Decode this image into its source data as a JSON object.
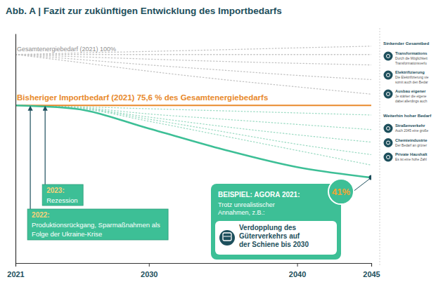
{
  "chart_data": {
    "type": "line",
    "title": "Abb. A | Fazit zur zukünftigen Entwicklung des Importbedarfs",
    "x": [
      2021,
      2025,
      2030,
      2035,
      2040,
      2045
    ],
    "xlim": [
      2021,
      2045
    ],
    "xticks": [
      2021,
      2030,
      2040,
      2045
    ],
    "ylim": [
      0,
      110
    ],
    "yticks": [],
    "tick_labels": "x",
    "grid": false,
    "series": [
      {
        "name": "Gesamtenergiebedarf (2021) 100%",
        "color": "#c4c4c4",
        "line_style": "dotted",
        "values": [
          100,
          100,
          100,
          100,
          100,
          100
        ]
      },
      {
        "color": "#c4c4c4",
        "line_style": "dotted",
        "values": [
          100,
          100.7,
          101.5,
          102.3,
          103.2,
          104
        ]
      },
      {
        "color": "#c4c4c4",
        "line_style": "dotted",
        "values": [
          100,
          99,
          97.8,
          96.7,
          95.8,
          95
        ]
      },
      {
        "color": "#c4c4c4",
        "line_style": "dotted",
        "values": [
          100,
          97.8,
          95,
          92.5,
          90,
          88
        ]
      },
      {
        "color": "#c4c4c4",
        "line_style": "dotted",
        "values": [
          100,
          96.5,
          92,
          88,
          84.5,
          81
        ]
      },
      {
        "color": "#9fdcc5",
        "line_style": "dotted",
        "values": [
          75.6,
          75,
          74,
          73,
          72,
          71
        ]
      },
      {
        "color": "#9fdcc5",
        "line_style": "dotted",
        "values": [
          75.6,
          74.8,
          71.5,
          69,
          66.5,
          64
        ]
      },
      {
        "color": "#9fdcc5",
        "line_style": "dotted",
        "values": [
          75.6,
          74.6,
          70,
          65.5,
          61.5,
          58
        ]
      },
      {
        "color": "#9fdcc5",
        "line_style": "dotted",
        "values": [
          75.6,
          74.5,
          69,
          63,
          57,
          52
        ]
      },
      {
        "color": "#9fdcc5",
        "line_style": "dotted",
        "values": [
          75.6,
          74.4,
          68,
          61,
          54,
          47
        ]
      },
      {
        "name": "Bisheriger Importbedarf (2021) 75,6 % des Gesamtenergiebedarfs",
        "color": "#e8892b",
        "line_style": "solid",
        "values": [
          75.6,
          75.6,
          75.6,
          75.6,
          75.6,
          75.6
        ]
      },
      {
        "color": "#3dbf96",
        "line_style": "solid",
        "values": [
          75.6,
          74,
          64.5,
          54.5,
          46,
          41
        ],
        "value_labels": [
          null,
          null,
          null,
          null,
          null,
          "41%"
        ]
      }
    ],
    "annotations": [
      {
        "x": 2022,
        "label": "2022:",
        "lines": [
          "Produktionsrückgang, Sparmaßnahmen als",
          "Folge der Ukraine-Krise"
        ]
      },
      {
        "x": 2023,
        "label": "2023:",
        "lines": [
          "Rezession"
        ]
      }
    ],
    "callout": {
      "title": "BEISPIEL: AGORA 2021:",
      "lines": [
        "Trotz unrealistischer",
        "Annahmen, z.B.:"
      ],
      "highlight": [
        "Verdopplung des",
        "Güterverkehrs auf",
        "der Schiene bis 2030"
      ]
    }
  },
  "side_panel": {
    "sections": [
      {
        "heading": "Sinkender Gesamtbed",
        "items": [
          {
            "title": "Transformations",
            "lines": [
              "Durch die Möglichkeit",
              "Transformationsverlu"
            ]
          },
          {
            "title": "Elektrifizierung",
            "lines": [
              "Die Elektrifizierung vie",
              "somit auch den Bedar"
            ]
          },
          {
            "title": "Ausbau eigener",
            "lines": [
              "Je stärker die eigene",
              "dabei allerdings auch"
            ]
          }
        ]
      },
      {
        "heading": "Weiterhin hoher Bedarf",
        "items": [
          {
            "title": "Straßenverkehr",
            "lines": [
              "Auch 2045 eine große"
            ]
          },
          {
            "title": "Chemieindustrie",
            "lines": [
              "Der Bedarf an grüner"
            ]
          },
          {
            "title": "Private Haushalt",
            "lines": [
              "Es ist eine hohe Zahl"
            ]
          }
        ]
      }
    ]
  }
}
